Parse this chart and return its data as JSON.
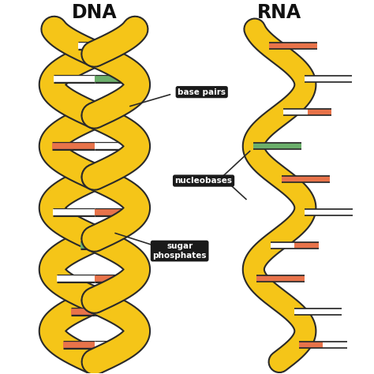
{
  "title_dna": "DNA",
  "title_rna": "RNA",
  "bg_color": "#ffffff",
  "helix_color": "#F5C518",
  "helix_outline": "#2a2a2a",
  "base_colors_orange": "#E8734A",
  "base_colors_green": "#6BAF6B",
  "base_colors_white": "#ffffff",
  "label_bg": "#1a1a1a",
  "label_fg": "#ffffff",
  "label_base_pairs": "base pairs",
  "label_nucleobases": "nucleobases",
  "label_sugar": "sugar\nphosphates",
  "fig_width": 4.74,
  "fig_height": 4.74,
  "dpi": 100
}
